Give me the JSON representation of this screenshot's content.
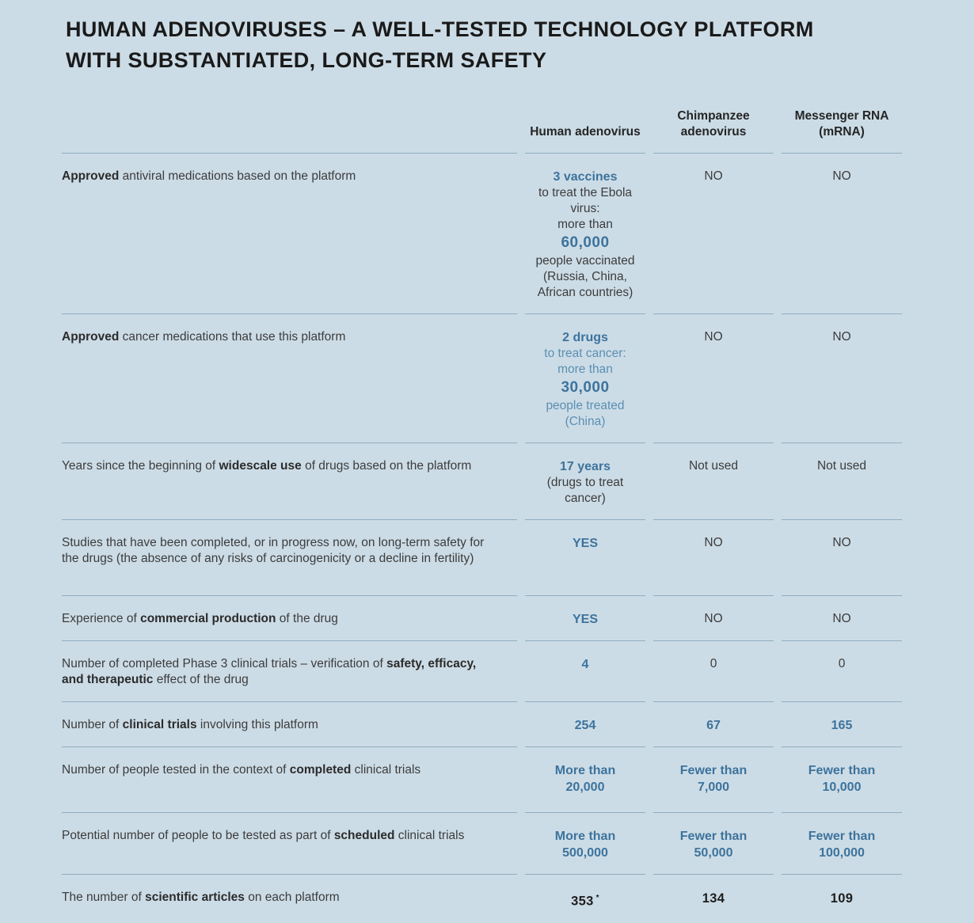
{
  "colors": {
    "background": "#ccdce6",
    "accent_blue": "#3d739c",
    "muted_blue": "#5b8fb3",
    "text_dark": "#3c3c3c",
    "strong_text": "#1e1e1e",
    "divider": "#8fadc0"
  },
  "title": {
    "line1": "HUMAN ADENOVIRUSES – A WELL-TESTED TECHNOLOGY PLATFORM",
    "line2": "WITH SUBSTANTIATED, LONG-TERM SAFETY"
  },
  "table": {
    "columns": [
      {
        "label": "Human adenovirus"
      },
      {
        "label": "Chimpanzee adenovirus"
      },
      {
        "label": "Messenger RNA (mRNA)"
      }
    ],
    "rows": [
      {
        "label": [
          {
            "t": "Approved",
            "b": true
          },
          {
            "t": " antiviral medications based on the platform"
          }
        ],
        "cells": [
          {
            "lines": [
              {
                "t": "3 vaccines",
                "s": "accent"
              },
              {
                "t": "to treat the Ebola virus:",
                "s": "dark"
              },
              {
                "t": "more than",
                "s": "dark"
              },
              {
                "t": "60,000",
                "s": "accent-lg"
              },
              {
                "t": "people vaccinated",
                "s": "dark"
              },
              {
                "t": "(Russia, China, African countries)",
                "s": "dark"
              }
            ]
          },
          {
            "lines": [
              {
                "t": "NO",
                "s": "dark"
              }
            ]
          },
          {
            "lines": [
              {
                "t": "NO",
                "s": "dark"
              }
            ]
          }
        ]
      },
      {
        "label": [
          {
            "t": "Approved",
            "b": true
          },
          {
            "t": " cancer medications that use this platform"
          }
        ],
        "cells": [
          {
            "lines": [
              {
                "t": "2 drugs",
                "s": "accent"
              },
              {
                "t": "to treat cancer:",
                "s": "muted"
              },
              {
                "t": "more than",
                "s": "muted"
              },
              {
                "t": "30,000",
                "s": "accent-lg"
              },
              {
                "t": "people treated",
                "s": "muted"
              },
              {
                "t": "(China)",
                "s": "muted"
              }
            ]
          },
          {
            "lines": [
              {
                "t": "NO",
                "s": "dark"
              }
            ]
          },
          {
            "lines": [
              {
                "t": "NO",
                "s": "dark"
              }
            ]
          }
        ]
      },
      {
        "label": [
          {
            "t": "Years since the beginning of "
          },
          {
            "t": "widescale use",
            "b": true
          },
          {
            "t": " of drugs based on the platform"
          }
        ],
        "cells": [
          {
            "lines": [
              {
                "t": "17 years",
                "s": "accent"
              },
              {
                "t": "(drugs to treat cancer)",
                "s": "dark"
              }
            ]
          },
          {
            "lines": [
              {
                "t": "Not used",
                "s": "dark"
              }
            ]
          },
          {
            "lines": [
              {
                "t": "Not used",
                "s": "dark"
              }
            ]
          }
        ]
      },
      {
        "label": [
          {
            "t": "Studies that have been completed, or in progress now, on long-term safety for the drugs (the absence of any risks of carcinogenicity or a decline in fertility)"
          }
        ],
        "cells": [
          {
            "lines": [
              {
                "t": "YES",
                "s": "accent"
              }
            ]
          },
          {
            "lines": [
              {
                "t": "NO",
                "s": "dark"
              }
            ]
          },
          {
            "lines": [
              {
                "t": "NO",
                "s": "dark"
              }
            ]
          }
        ]
      },
      {
        "label": [
          {
            "t": "Experience of "
          },
          {
            "t": "commercial production",
            "b": true
          },
          {
            "t": " of the drug"
          }
        ],
        "cells": [
          {
            "lines": [
              {
                "t": "YES",
                "s": "accent"
              }
            ]
          },
          {
            "lines": [
              {
                "t": "NO",
                "s": "dark"
              }
            ]
          },
          {
            "lines": [
              {
                "t": "NO",
                "s": "dark"
              }
            ]
          }
        ]
      },
      {
        "label": [
          {
            "t": "Number of completed Phase 3 clinical trials – verification of "
          },
          {
            "t": "safety, efficacy, and therapeutic",
            "b": true
          },
          {
            "t": " effect of the drug"
          }
        ],
        "cells": [
          {
            "lines": [
              {
                "t": "4",
                "s": "accent"
              }
            ]
          },
          {
            "lines": [
              {
                "t": "0",
                "s": "dark"
              }
            ]
          },
          {
            "lines": [
              {
                "t": "0",
                "s": "dark"
              }
            ]
          }
        ]
      },
      {
        "label": [
          {
            "t": "Number of "
          },
          {
            "t": "clinical trials",
            "b": true
          },
          {
            "t": " involving this platform"
          }
        ],
        "cells": [
          {
            "lines": [
              {
                "t": "254",
                "s": "accent"
              }
            ]
          },
          {
            "lines": [
              {
                "t": "67",
                "s": "accent"
              }
            ]
          },
          {
            "lines": [
              {
                "t": "165",
                "s": "accent"
              }
            ]
          }
        ]
      },
      {
        "label": [
          {
            "t": "Number of people tested in the context of "
          },
          {
            "t": "completed",
            "b": true
          },
          {
            "t": " clinical trials"
          }
        ],
        "cells": [
          {
            "lines": [
              {
                "t": "More than",
                "s": "accent"
              },
              {
                "t": "20,000",
                "s": "accent"
              }
            ]
          },
          {
            "lines": [
              {
                "t": "Fewer than",
                "s": "accent"
              },
              {
                "t": "7,000",
                "s": "accent"
              }
            ]
          },
          {
            "lines": [
              {
                "t": "Fewer than",
                "s": "accent"
              },
              {
                "t": "10,000",
                "s": "accent"
              }
            ]
          }
        ]
      },
      {
        "label": [
          {
            "t": "Potential number of people to be tested as part of "
          },
          {
            "t": "scheduled",
            "b": true
          },
          {
            "t": " clinical trials"
          }
        ],
        "cells": [
          {
            "lines": [
              {
                "t": "More than",
                "s": "accent"
              },
              {
                "t": "500,000",
                "s": "accent"
              }
            ]
          },
          {
            "lines": [
              {
                "t": "Fewer than",
                "s": "accent"
              },
              {
                "t": "50,000",
                "s": "accent"
              }
            ]
          },
          {
            "lines": [
              {
                "t": "Fewer than",
                "s": "accent"
              },
              {
                "t": "100,000",
                "s": "accent"
              }
            ]
          }
        ]
      },
      {
        "label": [
          {
            "t": "The number of "
          },
          {
            "t": "scientific articles",
            "b": true
          },
          {
            "t": " on each platform"
          }
        ],
        "cells": [
          {
            "lines": [
              {
                "t": "353",
                "s": "strong",
                "sup": "*"
              }
            ]
          },
          {
            "lines": [
              {
                "t": "134",
                "s": "strong"
              }
            ]
          },
          {
            "lines": [
              {
                "t": "109",
                "s": "strong"
              }
            ]
          }
        ]
      }
    ]
  }
}
